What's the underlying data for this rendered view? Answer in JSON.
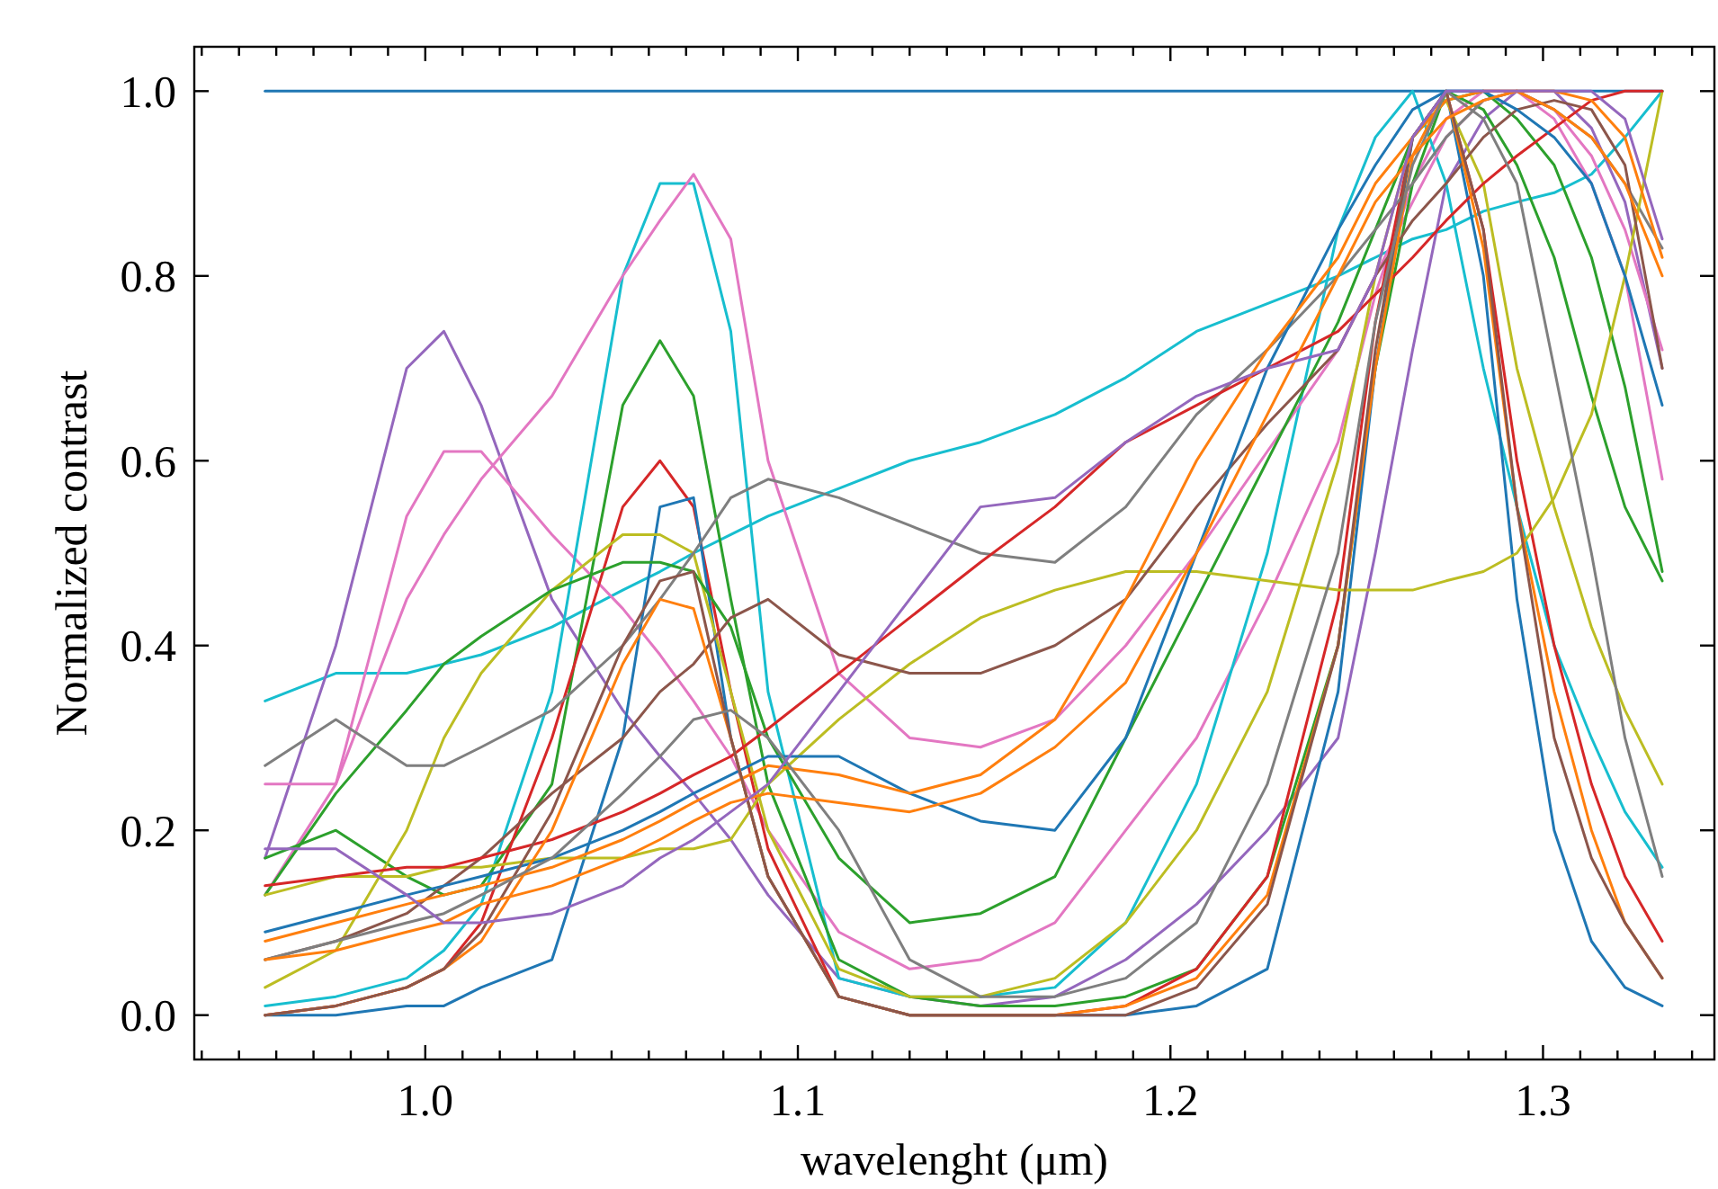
{
  "chart_data": {
    "type": "line",
    "xlabel": "wavelenght (μm)",
    "ylabel": "Normalized contrast",
    "grid": false,
    "marker": "none",
    "line_style": "solid",
    "xlim": [
      0.938,
      1.346
    ],
    "ylim": [
      -0.048,
      1.048
    ],
    "xticks": [
      {
        "value": 0.94,
        "label": null
      },
      {
        "value": 0.95,
        "label": null
      },
      {
        "value": 0.96,
        "label": null
      },
      {
        "value": 0.97,
        "label": null
      },
      {
        "value": 0.98,
        "label": null
      },
      {
        "value": 0.99,
        "label": null
      },
      {
        "value": 1.0,
        "label": "1.0"
      },
      {
        "value": 1.01,
        "label": null
      },
      {
        "value": 1.02,
        "label": null
      },
      {
        "value": 1.03,
        "label": null
      },
      {
        "value": 1.04,
        "label": null
      },
      {
        "value": 1.05,
        "label": null
      },
      {
        "value": 1.06,
        "label": null
      },
      {
        "value": 1.07,
        "label": null
      },
      {
        "value": 1.08,
        "label": null
      },
      {
        "value": 1.09,
        "label": null
      },
      {
        "value": 1.1,
        "label": "1.1"
      },
      {
        "value": 1.11,
        "label": null
      },
      {
        "value": 1.12,
        "label": null
      },
      {
        "value": 1.13,
        "label": null
      },
      {
        "value": 1.14,
        "label": null
      },
      {
        "value": 1.15,
        "label": null
      },
      {
        "value": 1.16,
        "label": null
      },
      {
        "value": 1.17,
        "label": null
      },
      {
        "value": 1.18,
        "label": null
      },
      {
        "value": 1.19,
        "label": null
      },
      {
        "value": 1.2,
        "label": "1.2"
      },
      {
        "value": 1.21,
        "label": null
      },
      {
        "value": 1.22,
        "label": null
      },
      {
        "value": 1.23,
        "label": null
      },
      {
        "value": 1.24,
        "label": null
      },
      {
        "value": 1.25,
        "label": null
      },
      {
        "value": 1.26,
        "label": null
      },
      {
        "value": 1.27,
        "label": null
      },
      {
        "value": 1.28,
        "label": null
      },
      {
        "value": 1.29,
        "label": null
      },
      {
        "value": 1.3,
        "label": "1.3"
      },
      {
        "value": 1.31,
        "label": null
      },
      {
        "value": 1.32,
        "label": null
      },
      {
        "value": 1.33,
        "label": null
      },
      {
        "value": 1.34,
        "label": null
      }
    ],
    "yticks": [
      {
        "value": 0,
        "label": "0.0"
      },
      {
        "value": 0.2,
        "label": "0.2"
      },
      {
        "value": 0.4,
        "label": "0.4"
      },
      {
        "value": 0.6,
        "label": "0.6"
      },
      {
        "value": 0.8,
        "label": "0.8"
      },
      {
        "value": 1.0,
        "label": "1.0"
      }
    ],
    "x": [
      0.957,
      0.976,
      0.995,
      1.005,
      1.015,
      1.034,
      1.053,
      1.063,
      1.072,
      1.082,
      1.092,
      1.111,
      1.13,
      1.149,
      1.169,
      1.188,
      1.207,
      1.226,
      1.245,
      1.255,
      1.265,
      1.274,
      1.284,
      1.293,
      1.303,
      1.313,
      1.322,
      1.332
    ],
    "series": [
      {
        "color": "#1f77b4",
        "values": [
          1,
          1,
          1,
          1,
          1,
          1,
          1,
          1,
          1,
          1,
          1,
          1,
          1,
          1,
          1,
          1,
          1,
          1,
          1,
          1,
          1,
          1,
          1,
          1,
          1,
          1,
          1,
          1
        ]
      },
      {
        "color": "#17becf",
        "values": [
          0.34,
          0.37,
          0.37,
          0.38,
          0.39,
          0.42,
          0.46,
          0.48,
          0.5,
          0.52,
          0.54,
          0.57,
          0.6,
          0.62,
          0.65,
          0.69,
          0.74,
          0.77,
          0.8,
          0.82,
          0.84,
          0.85,
          0.87,
          0.88,
          0.89,
          0.91,
          0.95,
          1.0
        ]
      },
      {
        "color": "#9467bd",
        "values": [
          0.17,
          0.4,
          0.7,
          0.74,
          0.66,
          0.45,
          0.33,
          0.28,
          0.24,
          0.19,
          0.13,
          0.04,
          0.02,
          0.01,
          0.02,
          0.06,
          0.12,
          0.2,
          0.3,
          0.5,
          0.72,
          0.9,
          0.97,
          1.0,
          1.0,
          0.96,
          0.88,
          0.7
        ]
      },
      {
        "color": "#e377c2",
        "values": [
          0.25,
          0.25,
          0.54,
          0.61,
          0.61,
          0.52,
          0.44,
          0.39,
          0.34,
          0.28,
          0.2,
          0.09,
          0.05,
          0.06,
          0.1,
          0.2,
          0.3,
          0.45,
          0.62,
          0.78,
          0.9,
          0.97,
          1.0,
          1.0,
          0.97,
          0.9,
          0.8,
          0.58
        ]
      },
      {
        "color": "#17becf",
        "values": [
          0.01,
          0.02,
          0.04,
          0.07,
          0.12,
          0.35,
          0.8,
          0.9,
          0.9,
          0.74,
          0.35,
          0.04,
          0.02,
          0.02,
          0.03,
          0.1,
          0.25,
          0.5,
          0.85,
          0.95,
          1.0,
          0.9,
          0.7,
          0.55,
          0.4,
          0.3,
          0.22,
          0.16
        ]
      },
      {
        "color": "#e377c2",
        "values": [
          0.13,
          0.25,
          0.45,
          0.52,
          0.58,
          0.67,
          0.8,
          0.86,
          0.91,
          0.84,
          0.6,
          0.37,
          0.3,
          0.29,
          0.32,
          0.4,
          0.5,
          0.61,
          0.72,
          0.8,
          0.88,
          0.95,
          0.99,
          1.0,
          0.98,
          0.93,
          0.85,
          0.72
        ]
      },
      {
        "color": "#2ca02c",
        "values": [
          0.17,
          0.2,
          0.15,
          0.13,
          0.14,
          0.25,
          0.66,
          0.73,
          0.67,
          0.45,
          0.25,
          0.06,
          0.02,
          0.01,
          0.01,
          0.02,
          0.05,
          0.15,
          0.4,
          0.7,
          0.9,
          1.0,
          0.98,
          0.92,
          0.82,
          0.67,
          0.55,
          0.47
        ]
      },
      {
        "color": "#d62728",
        "values": [
          0.0,
          0.01,
          0.03,
          0.05,
          0.1,
          0.3,
          0.55,
          0.6,
          0.55,
          0.35,
          0.18,
          0.02,
          0.0,
          0.0,
          0.0,
          0.01,
          0.05,
          0.15,
          0.45,
          0.75,
          0.95,
          1.0,
          0.85,
          0.6,
          0.4,
          0.25,
          0.15,
          0.08
        ]
      },
      {
        "color": "#1f77b4",
        "values": [
          0.0,
          0.0,
          0.01,
          0.01,
          0.03,
          0.06,
          0.3,
          0.55,
          0.56,
          0.3,
          0.15,
          0.02,
          0.0,
          0.0,
          0.0,
          0.0,
          0.01,
          0.05,
          0.35,
          0.7,
          0.95,
          1.0,
          0.8,
          0.45,
          0.2,
          0.08,
          0.03,
          0.01
        ]
      },
      {
        "color": "#bcbd22",
        "values": [
          0.03,
          0.07,
          0.2,
          0.3,
          0.37,
          0.46,
          0.52,
          0.52,
          0.5,
          0.35,
          0.2,
          0.05,
          0.02,
          0.02,
          0.04,
          0.1,
          0.2,
          0.35,
          0.6,
          0.8,
          0.95,
          0.99,
          0.9,
          0.7,
          0.55,
          0.42,
          0.33,
          0.25
        ]
      },
      {
        "color": "#2ca02c",
        "values": [
          0.13,
          0.24,
          0.33,
          0.38,
          0.41,
          0.46,
          0.49,
          0.49,
          0.48,
          0.42,
          0.3,
          0.17,
          0.1,
          0.11,
          0.15,
          0.3,
          0.45,
          0.6,
          0.75,
          0.85,
          0.95,
          0.99,
          1.0,
          0.97,
          0.92,
          0.82,
          0.68,
          0.48
        ]
      },
      {
        "color": "#7f7f7f",
        "values": [
          0.27,
          0.32,
          0.27,
          0.27,
          0.29,
          0.33,
          0.4,
          0.45,
          0.5,
          0.56,
          0.58,
          0.56,
          0.53,
          0.5,
          0.49,
          0.55,
          0.65,
          0.72,
          0.8,
          0.85,
          0.9,
          0.95,
          0.99,
          1.0,
          0.98,
          0.95,
          0.9,
          0.83
        ]
      },
      {
        "color": "#bcbd22",
        "values": [
          0.13,
          0.15,
          0.15,
          0.16,
          0.16,
          0.17,
          0.17,
          0.18,
          0.18,
          0.19,
          0.25,
          0.32,
          0.38,
          0.43,
          0.46,
          0.48,
          0.48,
          0.47,
          0.46,
          0.46,
          0.46,
          0.47,
          0.48,
          0.5,
          0.56,
          0.65,
          0.8,
          1.0
        ]
      },
      {
        "color": "#8c564b",
        "values": [
          0.06,
          0.08,
          0.11,
          0.14,
          0.17,
          0.24,
          0.3,
          0.35,
          0.38,
          0.43,
          0.45,
          0.39,
          0.37,
          0.37,
          0.4,
          0.45,
          0.55,
          0.64,
          0.72,
          0.8,
          0.86,
          0.9,
          0.95,
          0.98,
          0.99,
          0.98,
          0.92,
          0.7
        ]
      },
      {
        "color": "#d62728",
        "values": [
          0.14,
          0.15,
          0.16,
          0.16,
          0.17,
          0.19,
          0.22,
          0.24,
          0.26,
          0.28,
          0.31,
          0.37,
          0.43,
          0.49,
          0.55,
          0.62,
          0.66,
          0.7,
          0.74,
          0.78,
          0.82,
          0.86,
          0.9,
          0.93,
          0.96,
          0.99,
          1.0,
          1.0
        ]
      },
      {
        "color": "#1f77b4",
        "values": [
          0.09,
          0.11,
          0.13,
          0.14,
          0.15,
          0.17,
          0.2,
          0.22,
          0.24,
          0.26,
          0.28,
          0.28,
          0.24,
          0.21,
          0.2,
          0.3,
          0.5,
          0.7,
          0.85,
          0.92,
          0.98,
          1.0,
          1.0,
          0.98,
          0.95,
          0.9,
          0.8,
          0.66
        ]
      },
      {
        "color": "#ff7f0e",
        "values": [
          0.08,
          0.1,
          0.12,
          0.13,
          0.14,
          0.16,
          0.19,
          0.21,
          0.23,
          0.25,
          0.27,
          0.26,
          0.24,
          0.26,
          0.32,
          0.45,
          0.6,
          0.72,
          0.82,
          0.9,
          0.95,
          0.99,
          1.0,
          1.0,
          0.98,
          0.95,
          0.9,
          0.8
        ]
      },
      {
        "color": "#ff7f0e",
        "values": [
          0.0,
          0.01,
          0.03,
          0.05,
          0.08,
          0.2,
          0.38,
          0.45,
          0.44,
          0.3,
          0.15,
          0.02,
          0.0,
          0.0,
          0.0,
          0.01,
          0.04,
          0.13,
          0.4,
          0.7,
          0.93,
          1.0,
          0.83,
          0.55,
          0.35,
          0.2,
          0.1,
          0.04
        ]
      },
      {
        "color": "#8c564b",
        "values": [
          0.0,
          0.01,
          0.03,
          0.05,
          0.09,
          0.22,
          0.4,
          0.47,
          0.48,
          0.3,
          0.15,
          0.02,
          0.0,
          0.0,
          0.0,
          0.0,
          0.03,
          0.12,
          0.4,
          0.72,
          0.95,
          1.0,
          0.85,
          0.55,
          0.3,
          0.17,
          0.1,
          0.04
        ]
      },
      {
        "color": "#7f7f7f",
        "values": [
          0.06,
          0.08,
          0.1,
          0.11,
          0.13,
          0.17,
          0.24,
          0.28,
          0.32,
          0.33,
          0.3,
          0.2,
          0.06,
          0.02,
          0.02,
          0.04,
          0.1,
          0.25,
          0.5,
          0.75,
          0.92,
          1.0,
          0.97,
          0.9,
          0.7,
          0.5,
          0.3,
          0.15
        ]
      },
      {
        "color": "#ff7f0e",
        "values": [
          0.06,
          0.07,
          0.09,
          0.1,
          0.12,
          0.14,
          0.17,
          0.19,
          0.21,
          0.23,
          0.24,
          0.23,
          0.22,
          0.24,
          0.29,
          0.36,
          0.5,
          0.65,
          0.8,
          0.88,
          0.93,
          0.97,
          0.99,
          1.0,
          1.0,
          0.99,
          0.95,
          0.82
        ]
      },
      {
        "color": "#9467bd",
        "values": [
          0.18,
          0.18,
          0.13,
          0.1,
          0.1,
          0.11,
          0.14,
          0.17,
          0.19,
          0.22,
          0.25,
          0.35,
          0.45,
          0.55,
          0.56,
          0.62,
          0.67,
          0.7,
          0.72,
          0.8,
          0.95,
          1.0,
          1.0,
          1.0,
          1.0,
          1.0,
          0.97,
          0.84
        ]
      }
    ]
  }
}
